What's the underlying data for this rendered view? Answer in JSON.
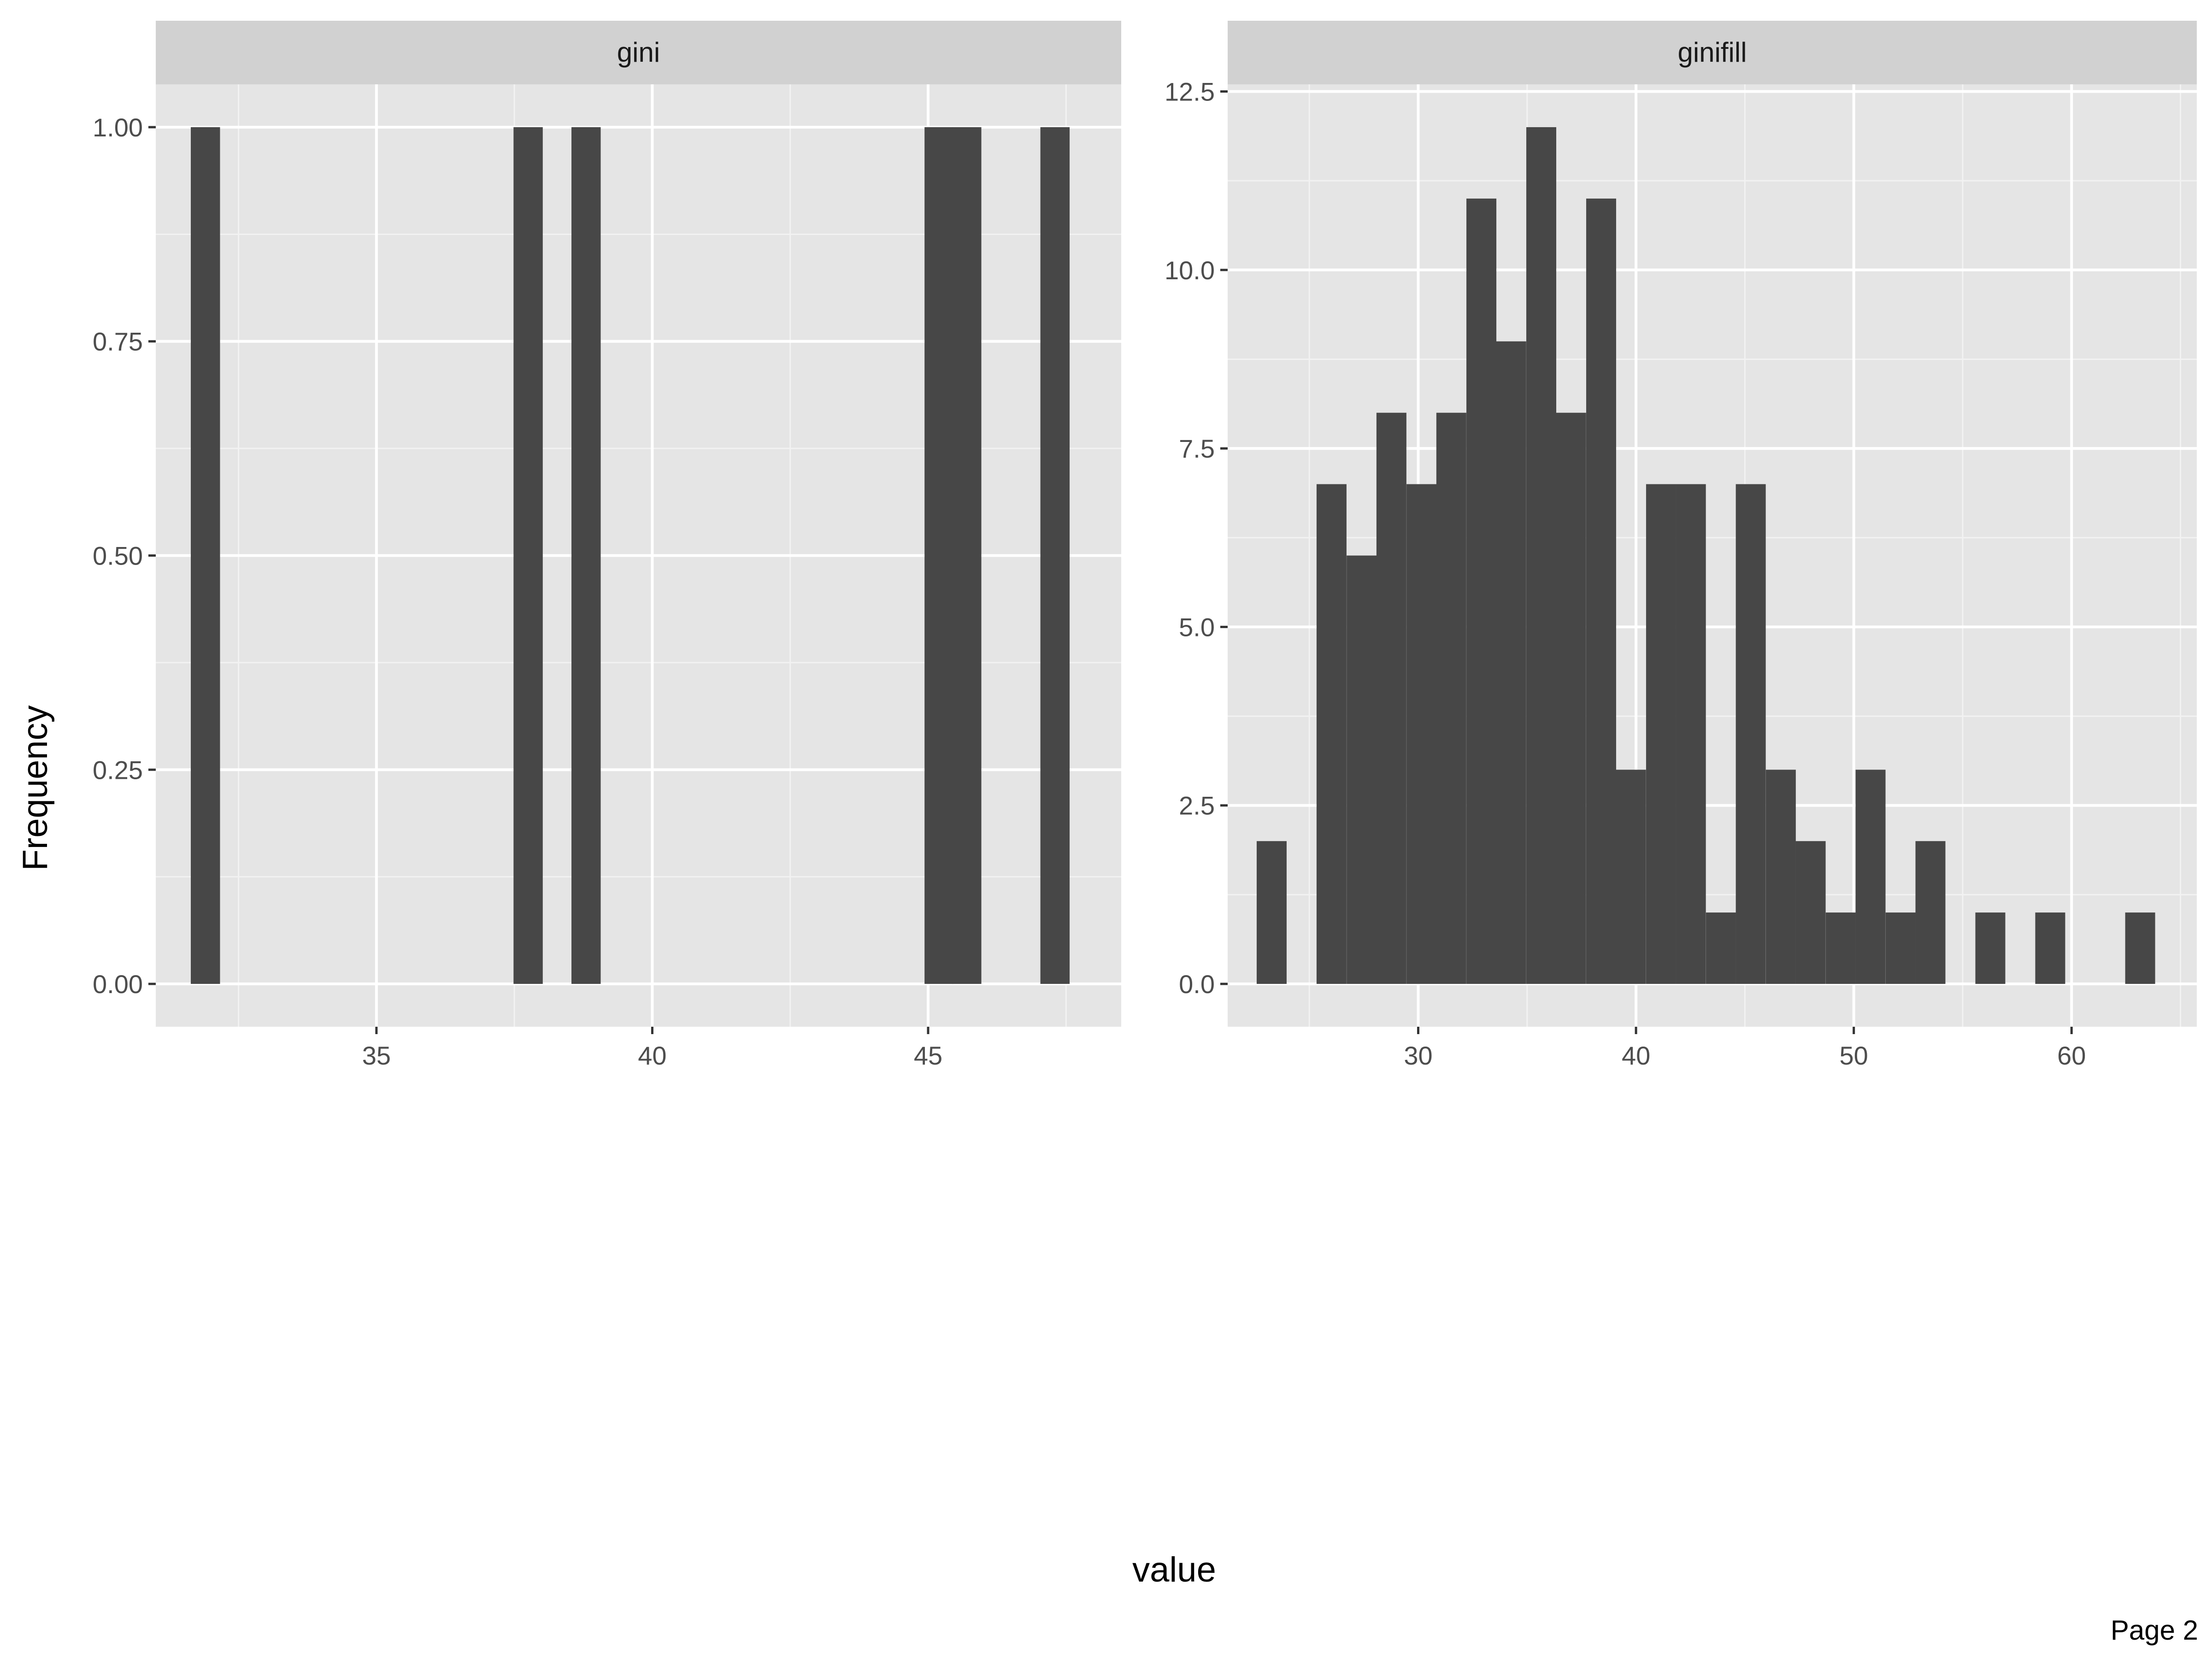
{
  "chart_data": {
    "type": "bar",
    "xlabel": "value",
    "ylabel": "Frequency",
    "grid": true,
    "bar_color": "#474747",
    "panel_background": "#e5e5e5",
    "strip_background": "#d1d1d1",
    "panels": [
      {
        "strip_label": "gini",
        "xlim": [
          31,
          48.5
        ],
        "ylim": [
          -0.05,
          1.05
        ],
        "x_ticks": [
          35,
          40,
          45
        ],
        "x_tick_labels": [
          "35",
          "40",
          "45"
        ],
        "y_ticks": [
          0,
          0.25,
          0.5,
          0.75,
          1.0
        ],
        "y_tick_labels": [
          "0.00",
          "0.25",
          "0.50",
          "0.75",
          "1.00"
        ],
        "bin_width": 0.53,
        "bins": [
          {
            "x": 31.9,
            "count": 1
          },
          {
            "x": 37.75,
            "count": 1
          },
          {
            "x": 38.8,
            "count": 1
          },
          {
            "x": 45.2,
            "count": 1
          },
          {
            "x": 45.7,
            "count": 1
          },
          {
            "x": 47.3,
            "count": 1
          }
        ]
      },
      {
        "strip_label": "ginifill",
        "xlim": [
          21.25,
          65.75
        ],
        "ylim": [
          -0.6,
          12.6
        ],
        "x_ticks": [
          30,
          40,
          50,
          60
        ],
        "x_tick_labels": [
          "30",
          "40",
          "50",
          "60"
        ],
        "y_ticks": [
          0,
          2.5,
          5.0,
          7.5,
          10.0,
          12.5
        ],
        "y_tick_labels": [
          "0.0",
          "2.5",
          "5.0",
          "7.5",
          "10.0",
          "12.5"
        ],
        "bin_width": 1.375,
        "bins": [
          {
            "x": 23.27,
            "count": 2
          },
          {
            "x": 26.02,
            "count": 7
          },
          {
            "x": 27.4,
            "count": 6
          },
          {
            "x": 28.77,
            "count": 8
          },
          {
            "x": 30.15,
            "count": 7
          },
          {
            "x": 31.52,
            "count": 8
          },
          {
            "x": 32.9,
            "count": 11
          },
          {
            "x": 34.27,
            "count": 9
          },
          {
            "x": 35.65,
            "count": 12
          },
          {
            "x": 37.02,
            "count": 8
          },
          {
            "x": 38.4,
            "count": 11
          },
          {
            "x": 39.77,
            "count": 3
          },
          {
            "x": 41.15,
            "count": 7
          },
          {
            "x": 42.52,
            "count": 7
          },
          {
            "x": 43.9,
            "count": 1
          },
          {
            "x": 45.27,
            "count": 7
          },
          {
            "x": 46.65,
            "count": 3
          },
          {
            "x": 48.02,
            "count": 2
          },
          {
            "x": 49.4,
            "count": 1
          },
          {
            "x": 50.77,
            "count": 3
          },
          {
            "x": 52.15,
            "count": 1
          },
          {
            "x": 53.52,
            "count": 2
          },
          {
            "x": 56.27,
            "count": 1
          },
          {
            "x": 59.02,
            "count": 1
          },
          {
            "x": 63.15,
            "count": 1
          }
        ]
      }
    ]
  },
  "footer": {
    "page_label": "Page 2"
  }
}
